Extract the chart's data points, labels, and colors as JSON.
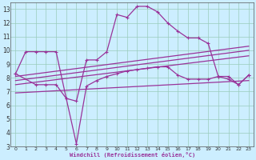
{
  "bg_color": "#cceeff",
  "line_color": "#993399",
  "grid_color": "#99ccbb",
  "xlabel": "Windchill (Refroidissement éolien,°C)",
  "x_ticks": [
    0,
    1,
    2,
    3,
    4,
    5,
    6,
    7,
    8,
    9,
    10,
    11,
    12,
    13,
    14,
    15,
    16,
    17,
    18,
    19,
    20,
    21,
    22,
    23
  ],
  "y_ticks": [
    3,
    4,
    5,
    6,
    7,
    8,
    9,
    10,
    11,
    12,
    13
  ],
  "xlim": [
    -0.5,
    23.5
  ],
  "ylim": [
    3,
    13.5
  ],
  "lines": [
    {
      "x": [
        0,
        1,
        2,
        3,
        4,
        5,
        6,
        7,
        8,
        9,
        10,
        11,
        12,
        13,
        14,
        15,
        16,
        17,
        18,
        19,
        20,
        21,
        22,
        23
      ],
      "y": [
        8.3,
        9.9,
        9.9,
        9.9,
        9.9,
        6.5,
        6.3,
        9.3,
        9.3,
        9.9,
        12.6,
        12.4,
        13.2,
        13.2,
        12.8,
        12.0,
        11.4,
        10.9,
        10.9,
        10.5,
        8.1,
        8.1,
        7.5,
        8.2
      ],
      "marker": true
    },
    {
      "x": [
        0,
        2,
        3,
        4,
        5,
        6,
        7,
        8,
        9,
        10,
        11,
        12,
        13,
        14,
        15,
        16,
        17,
        18,
        19,
        20,
        21,
        22,
        23
      ],
      "y": [
        8.3,
        7.5,
        7.5,
        7.5,
        6.5,
        3.2,
        7.4,
        7.8,
        8.1,
        8.3,
        8.5,
        8.6,
        8.7,
        8.8,
        8.8,
        8.2,
        7.9,
        7.9,
        7.9,
        8.1,
        7.9,
        7.5,
        8.2
      ],
      "marker": true
    },
    {
      "x": [
        0,
        23
      ],
      "y": [
        8.1,
        10.3
      ],
      "marker": false
    },
    {
      "x": [
        0,
        23
      ],
      "y": [
        7.8,
        10.0
      ],
      "marker": false
    },
    {
      "x": [
        0,
        23
      ],
      "y": [
        7.5,
        9.6
      ],
      "marker": false
    },
    {
      "x": [
        0,
        23
      ],
      "y": [
        6.9,
        7.8
      ],
      "marker": false
    }
  ]
}
